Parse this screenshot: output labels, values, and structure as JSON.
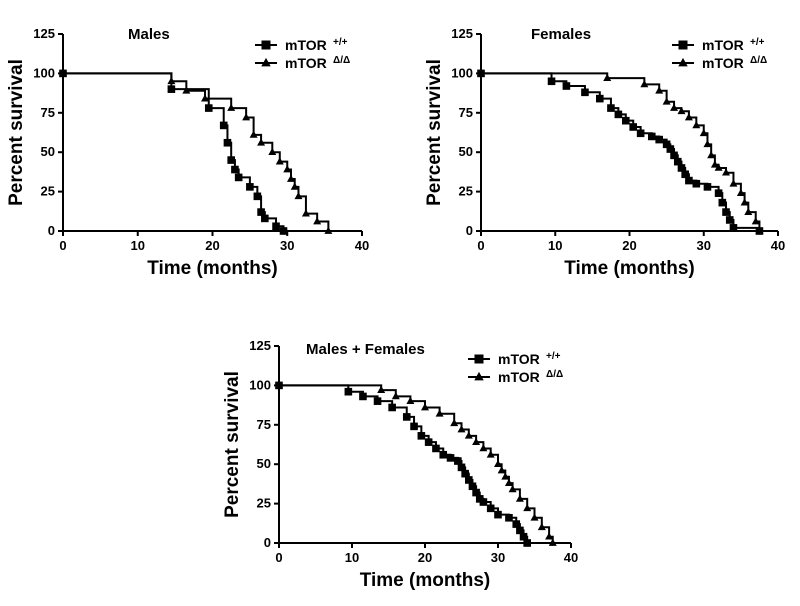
{
  "chart_data": [
    {
      "type": "line",
      "title": "Males",
      "xlabel": "Time (months)",
      "ylabel": "Percent survival",
      "xlim": [
        0,
        40
      ],
      "ylim": [
        0,
        125
      ],
      "xticks": [
        "0",
        "10",
        "20",
        "30",
        "40"
      ],
      "yticks": [
        "0",
        "25",
        "50",
        "75",
        "100",
        "125"
      ],
      "legend_position": "top-right",
      "series": [
        {
          "name": "mTOR",
          "superscript": "+/+",
          "marker": "square",
          "x": [
            0,
            14.5,
            19.5,
            21.5,
            22.0,
            22.5,
            23.0,
            23.5,
            25.0,
            26.0,
            26.5,
            27.0,
            28.5,
            29.5
          ],
          "y": [
            100,
            90,
            78,
            67,
            56,
            45,
            39,
            34,
            28,
            22,
            12,
            8,
            3,
            0
          ]
        },
        {
          "name": "mTOR",
          "superscript": "Δ/Δ",
          "marker": "triangle",
          "x": [
            0,
            14.5,
            16.5,
            19.0,
            22.5,
            24.5,
            25.5,
            26.5,
            28.0,
            29.0,
            30.0,
            30.5,
            31.0,
            31.5,
            32.5,
            34.0,
            35.5
          ],
          "y": [
            100,
            95,
            89,
            84,
            78,
            72,
            61,
            56,
            50,
            44,
            39,
            33,
            28,
            22,
            11,
            6,
            0
          ]
        }
      ]
    },
    {
      "type": "line",
      "title": "Females",
      "xlabel": "Time (months)",
      "ylabel": "Percent survival",
      "xlim": [
        0,
        40
      ],
      "ylim": [
        0,
        125
      ],
      "xticks": [
        "0",
        "10",
        "20",
        "30",
        "40"
      ],
      "yticks": [
        "0",
        "25",
        "50",
        "75",
        "100",
        "125"
      ],
      "legend_position": "top-right",
      "series": [
        {
          "name": "mTOR",
          "superscript": "+/+",
          "marker": "square",
          "x": [
            0,
            9.5,
            11.5,
            14.0,
            16.0,
            17.5,
            18.5,
            19.5,
            20.5,
            21.5,
            23.0,
            24.0,
            25.0,
            25.5,
            26.0,
            26.5,
            27.0,
            27.5,
            28.0,
            29.0,
            30.5,
            32.0,
            32.5,
            33.0,
            33.5,
            34.0,
            37.5
          ],
          "y": [
            100,
            95,
            92,
            88,
            84,
            78,
            74,
            70,
            66,
            62,
            60,
            58,
            55,
            52,
            48,
            44,
            40,
            36,
            32,
            30,
            28,
            24,
            18,
            12,
            7,
            2,
            0
          ]
        },
        {
          "name": "mTOR",
          "superscript": "Δ/Δ",
          "marker": "triangle",
          "x": [
            0,
            17.0,
            22.0,
            24.0,
            25.0,
            26.0,
            27.0,
            28.0,
            29.0,
            30.0,
            30.5,
            31.0,
            31.5,
            32.0,
            33.0,
            34.0,
            35.0,
            35.5,
            36.0,
            37.0,
            37.5
          ],
          "y": [
            100,
            97,
            93,
            89,
            82,
            78,
            76,
            72,
            67,
            62,
            55,
            48,
            42,
            40,
            37,
            30,
            24,
            18,
            12,
            6,
            0
          ]
        }
      ]
    },
    {
      "type": "line",
      "title": "Males + Females",
      "xlabel": "Time (months)",
      "ylabel": "Percent survival",
      "xlim": [
        0,
        40
      ],
      "ylim": [
        0,
        125
      ],
      "xticks": [
        "0",
        "10",
        "20",
        "30",
        "40"
      ],
      "yticks": [
        "0",
        "25",
        "50",
        "75",
        "100",
        "125"
      ],
      "legend_position": "top-right",
      "series": [
        {
          "name": "mTOR",
          "superscript": "+/+",
          "marker": "square",
          "x": [
            0,
            9.5,
            11.5,
            13.5,
            15.5,
            17.5,
            18.5,
            19.5,
            20.5,
            21.5,
            22.5,
            23.5,
            24.5,
            25.0,
            25.5,
            26.0,
            26.5,
            27.0,
            27.5,
            28.0,
            29.0,
            30.0,
            31.5,
            32.5,
            33.0,
            33.5,
            34.0
          ],
          "y": [
            100,
            96,
            93,
            90,
            86,
            80,
            74,
            68,
            64,
            60,
            56,
            54,
            52,
            48,
            44,
            40,
            36,
            32,
            28,
            26,
            22,
            18,
            16,
            12,
            8,
            4,
            0
          ]
        },
        {
          "name": "mTOR",
          "superscript": "Δ/Δ",
          "marker": "triangle",
          "x": [
            0,
            14.0,
            16.0,
            18.0,
            20.0,
            22.0,
            24.0,
            25.0,
            26.0,
            27.0,
            28.0,
            29.0,
            30.0,
            30.5,
            31.0,
            31.5,
            32.0,
            33.0,
            34.0,
            35.0,
            36.0,
            37.0,
            37.5
          ],
          "y": [
            100,
            97,
            93,
            90,
            86,
            82,
            76,
            72,
            68,
            64,
            60,
            56,
            50,
            46,
            42,
            38,
            34,
            28,
            22,
            16,
            10,
            4,
            0
          ]
        }
      ]
    }
  ]
}
